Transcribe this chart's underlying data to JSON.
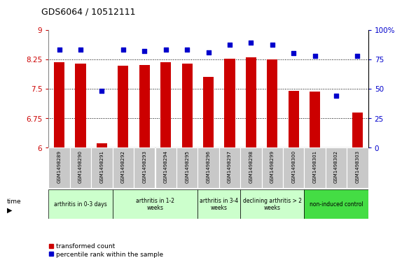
{
  "title": "GDS6064 / 10512111",
  "samples": [
    "GSM1498289",
    "GSM1498290",
    "GSM1498291",
    "GSM1498292",
    "GSM1498293",
    "GSM1498294",
    "GSM1498295",
    "GSM1498296",
    "GSM1498297",
    "GSM1498298",
    "GSM1498299",
    "GSM1498300",
    "GSM1498301",
    "GSM1498302",
    "GSM1498303"
  ],
  "transformed_count": [
    8.17,
    8.14,
    6.12,
    8.08,
    8.11,
    8.17,
    8.14,
    7.8,
    8.27,
    8.3,
    8.25,
    7.45,
    7.42,
    6.01,
    6.9
  ],
  "percentile_rank": [
    83,
    83,
    48,
    83,
    82,
    83,
    83,
    81,
    87,
    89,
    87,
    80,
    78,
    44,
    78
  ],
  "group_defs": [
    {
      "label": "arthritis in 0-3 days",
      "start": 0,
      "end": 2,
      "color": "#ccffcc"
    },
    {
      "label": "arthritis in 1-2\nweeks",
      "start": 3,
      "end": 6,
      "color": "#ccffcc"
    },
    {
      "label": "arthritis in 3-4\nweeks",
      "start": 7,
      "end": 8,
      "color": "#ccffcc"
    },
    {
      "label": "declining arthritis > 2\nweeks",
      "start": 9,
      "end": 11,
      "color": "#ccffcc"
    },
    {
      "label": "non-induced control",
      "start": 12,
      "end": 14,
      "color": "#44dd44"
    }
  ],
  "ylim_left": [
    6.0,
    9.0
  ],
  "ylim_right": [
    0,
    100
  ],
  "yticks_left": [
    6.0,
    6.75,
    7.5,
    8.25,
    9.0
  ],
  "yticks_right": [
    0,
    25,
    50,
    75,
    100
  ],
  "ytick_labels_left": [
    "6",
    "6.75",
    "7.5",
    "8.25",
    "9"
  ],
  "ytick_labels_right": [
    "0",
    "25",
    "50",
    "75",
    "100%"
  ],
  "bar_color": "#cc0000",
  "dot_color": "#0000cc",
  "bar_width": 0.5,
  "grid_lines": [
    6.75,
    7.5,
    8.25
  ],
  "sample_box_color": "#c8c8c8",
  "legend_items": [
    {
      "label": "transformed count",
      "color": "#cc0000"
    },
    {
      "label": "percentile rank within the sample",
      "color": "#0000cc"
    }
  ]
}
